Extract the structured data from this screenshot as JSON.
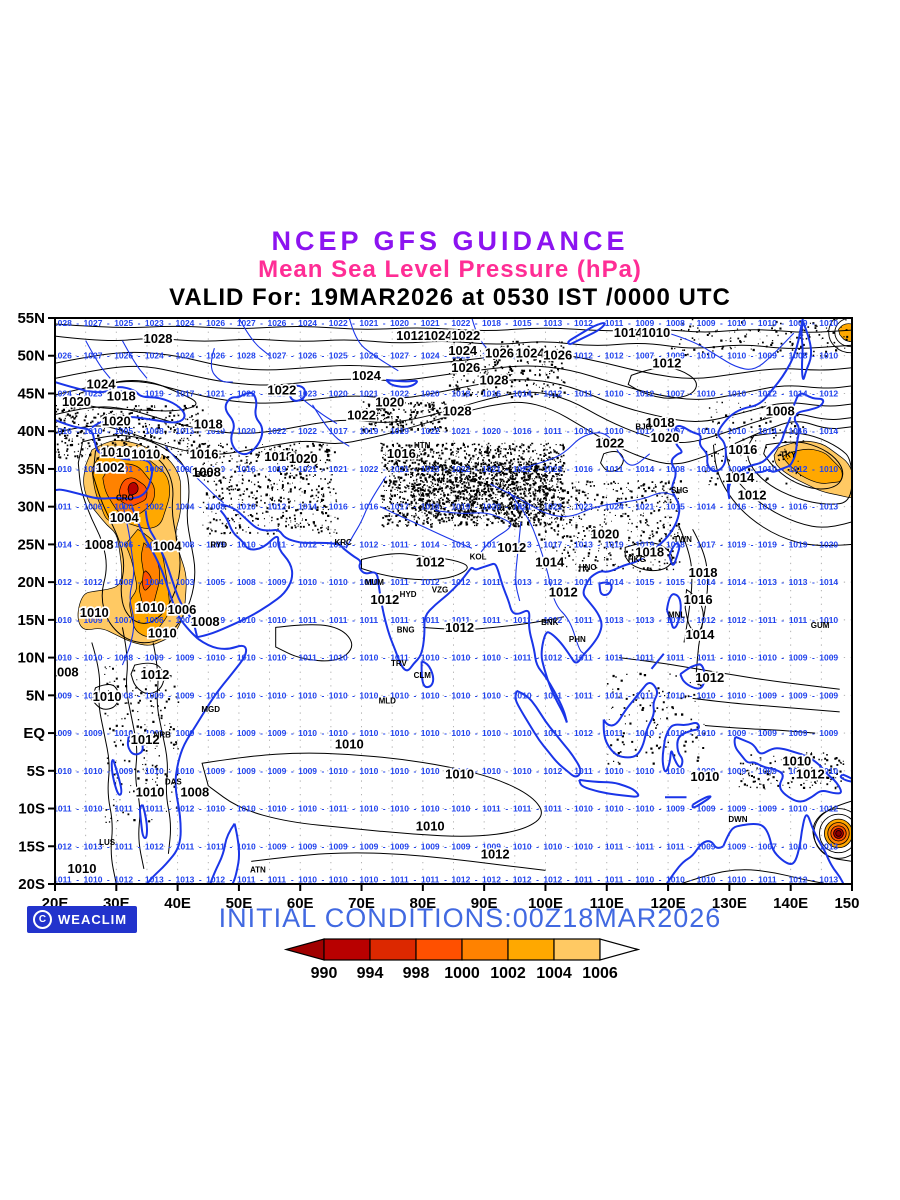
{
  "header": {
    "line1": "NCEP GFS GUIDANCE",
    "line2": "Mean Sea Level Pressure (hPa)",
    "line3": "VALID For: 19MAR2026 at 0530 IST /0000 UTC"
  },
  "footer": {
    "copyright_symbol": "C",
    "credit": "WEACLIM",
    "initial_conditions": "INITIAL CONDITIONS:00Z18MAR2026"
  },
  "colors": {
    "title": "#8C13F0",
    "subtitle": "#FF2D95",
    "valid_line": "#000000",
    "initial_conditions": "#4169E1",
    "badge_bg": "#2233CC",
    "coastline": "#1A35E8",
    "value_grid": "#2244EE",
    "contour": "#000000",
    "grid_dots": "#AAAAAA"
  },
  "legend": {
    "levels": [
      "990",
      "994",
      "998",
      "1000",
      "1002",
      "1004",
      "1006"
    ],
    "box_colors": [
      "#B80000",
      "#DC2800",
      "#FF5000",
      "#FF8200",
      "#FFA800",
      "#FFC963"
    ],
    "arrow_left_color": "#A00000",
    "arrow_right_color": "#FFFFFF"
  },
  "map": {
    "extent": {
      "lon_min": 20,
      "lon_max": 150,
      "lat_min": -20,
      "lat_max": 55
    },
    "lon_labels": [
      "20E",
      "30E",
      "40E",
      "50E",
      "60E",
      "70E",
      "80E",
      "90E",
      "100E",
      "110E",
      "120E",
      "130E",
      "140E",
      "150E"
    ],
    "lat_labels": [
      "55N",
      "50N",
      "45N",
      "40N",
      "35N",
      "30N",
      "25N",
      "20N",
      "15N",
      "10N",
      "5N",
      "EQ",
      "5S",
      "10S",
      "15S",
      "20S"
    ],
    "value_grid": {
      "start_lon": 21.2,
      "step": 5,
      "rows": [
        {
          "lat": 54.6,
          "values": [
            1028,
            1027,
            1025,
            1023,
            1024,
            1026,
            1027,
            1026,
            1024,
            1022,
            1021,
            1020,
            1021,
            1022,
            1018,
            1015,
            1013,
            1012,
            1011,
            1009,
            1008,
            1009,
            1010,
            1010,
            1009,
            1010
          ]
        },
        {
          "lat": 50,
          "values": [
            1026,
            1027,
            1026,
            1024,
            1024,
            1026,
            1028,
            1027,
            1026,
            1025,
            1026,
            1027,
            1024,
            1023,
            1021,
            1020,
            1015,
            1012,
            1012,
            1007,
            1009,
            1010,
            1010,
            1009,
            1008,
            1010
          ]
        },
        {
          "lat": 45,
          "values": [
            1024,
            1023,
            1021,
            1019,
            1017,
            1021,
            1022,
            1023,
            1023,
            1020,
            1021,
            1022,
            1020,
            1018,
            1016,
            1014,
            1012,
            1011,
            1010,
            1012,
            1007,
            1010,
            1010,
            1012,
            1014,
            1012
          ]
        },
        {
          "lat": 40,
          "values": [
            1016,
            1010,
            1005,
            1008,
            1013,
            1019,
            1020,
            1022,
            1022,
            1017,
            1019,
            1019,
            1022,
            1021,
            1020,
            1016,
            1011,
            1010,
            1010,
            1012,
            1007,
            1010,
            1010,
            1014,
            1016,
            1014
          ]
        },
        {
          "lat": 35,
          "values": [
            1010,
            1006,
            1001,
            1003,
            1006,
            1010,
            1016,
            1019,
            1021,
            1021,
            1022,
            1021,
            1023,
            1022,
            1021,
            1022,
            1023,
            1016,
            1011,
            1014,
            1008,
            1006,
            1008,
            1010,
            1012,
            1010
          ]
        },
        {
          "lat": 30,
          "values": [
            1011,
            1006,
            1000,
            1002,
            1004,
            1008,
            1010,
            1012,
            1014,
            1016,
            1016,
            1017,
            1018,
            1019,
            1020,
            1021,
            1022,
            1023,
            1024,
            1021,
            1015,
            1014,
            1016,
            1019,
            1016,
            1013
          ]
        },
        {
          "lat": 25,
          "values": [
            1014,
            1010,
            1006,
            1007,
            1008,
            1009,
            1010,
            1011,
            1012,
            1013,
            1012,
            1011,
            1014,
            1013,
            1013,
            1013,
            1017,
            1013,
            1019,
            1019,
            1018,
            1017,
            1019,
            1019,
            1019,
            1020
          ]
        },
        {
          "lat": 20,
          "values": [
            1012,
            1012,
            1008,
            1004,
            1003,
            1005,
            1008,
            1009,
            1010,
            1010,
            1010,
            1011,
            1012,
            1012,
            1011,
            1013,
            1012,
            1011,
            1014,
            1015,
            1015,
            1014,
            1014,
            1013,
            1013,
            1014
          ]
        },
        {
          "lat": 15,
          "values": [
            1010,
            1009,
            1007,
            1006,
            1008,
            1009,
            1010,
            1010,
            1011,
            1011,
            1011,
            1011,
            1011,
            1011,
            1011,
            1011,
            1012,
            1011,
            1013,
            1013,
            1013,
            1012,
            1012,
            1011,
            1011,
            1010
          ]
        },
        {
          "lat": 10,
          "values": [
            1010,
            1010,
            1008,
            1009,
            1009,
            1010,
            1010,
            1010,
            1011,
            1010,
            1010,
            1011,
            1010,
            1010,
            1010,
            1011,
            1012,
            1011,
            1011,
            1011,
            1011,
            1011,
            1010,
            1010,
            1009,
            1009
          ]
        },
        {
          "lat": 5,
          "values": [
            1009,
            1008,
            1008,
            1009,
            1009,
            1010,
            1010,
            1010,
            1010,
            1010,
            1010,
            1010,
            1010,
            1010,
            1010,
            1010,
            1011,
            1011,
            1011,
            1011,
            1010,
            1010,
            1010,
            1009,
            1009,
            1009
          ]
        },
        {
          "lat": 0,
          "values": [
            1009,
            1009,
            1010,
            1011,
            1009,
            1008,
            1009,
            1009,
            1010,
            1010,
            1010,
            1010,
            1010,
            1010,
            1010,
            1010,
            1011,
            1012,
            1011,
            1010,
            1010,
            1010,
            1009,
            1009,
            1009,
            1009
          ]
        },
        {
          "lat": -5,
          "values": [
            1010,
            1010,
            1009,
            1010,
            1010,
            1009,
            1009,
            1009,
            1009,
            1010,
            1010,
            1010,
            1010,
            1010,
            1010,
            1010,
            1012,
            1011,
            1010,
            1010,
            1010,
            1009,
            1009,
            1009,
            1009,
            1010
          ]
        },
        {
          "lat": -10,
          "values": [
            1011,
            1010,
            1011,
            1011,
            1012,
            1010,
            1010,
            1010,
            1010,
            1011,
            1010,
            1010,
            1010,
            1010,
            1011,
            1011,
            1011,
            1010,
            1010,
            1010,
            1009,
            1009,
            1009,
            1009,
            1010,
            1012
          ]
        },
        {
          "lat": -15,
          "values": [
            1012,
            1013,
            1011,
            1012,
            1011,
            1011,
            1010,
            1009,
            1009,
            1009,
            1009,
            1009,
            1009,
            1009,
            1009,
            1010,
            1010,
            1010,
            1011,
            1011,
            1011,
            1009,
            1009,
            1007,
            1010,
            1013
          ]
        },
        {
          "lat": -19.4,
          "values": [
            1011,
            1010,
            1012,
            1013,
            1013,
            1012,
            1011,
            1011,
            1010,
            1010,
            1010,
            1011,
            1011,
            1012,
            1012,
            1012,
            1012,
            1011,
            1011,
            1010,
            1010,
            1010,
            1010,
            1011,
            1012,
            1013
          ]
        }
      ]
    },
    "contour_labels": [
      [
        36.8,
        52.2,
        "1028"
      ],
      [
        78,
        52.6,
        "1012"
      ],
      [
        82.5,
        52.6,
        "1024"
      ],
      [
        87,
        52.6,
        "1022"
      ],
      [
        113.5,
        53,
        "1014"
      ],
      [
        118,
        53,
        "1010"
      ],
      [
        86.5,
        50.6,
        "1024"
      ],
      [
        92.5,
        50.3,
        "1026"
      ],
      [
        97.5,
        50.3,
        "1024"
      ],
      [
        102,
        50,
        "1026"
      ],
      [
        87,
        48.4,
        "1026"
      ],
      [
        91.6,
        46.7,
        "1028"
      ],
      [
        70.8,
        47.3,
        "1024"
      ],
      [
        57,
        45.4,
        "1022"
      ],
      [
        74.6,
        43.8,
        "1020"
      ],
      [
        70,
        42.1,
        "1022"
      ],
      [
        85.6,
        42.6,
        "1028"
      ],
      [
        27.5,
        46.2,
        "1024"
      ],
      [
        23.5,
        43.9,
        "1020"
      ],
      [
        30.8,
        44.6,
        "1018"
      ],
      [
        30,
        41.3,
        "1020"
      ],
      [
        45,
        40.9,
        "1018"
      ],
      [
        119.8,
        49,
        "1012"
      ],
      [
        138.3,
        42.6,
        "1008"
      ],
      [
        118.7,
        41.1,
        "1018"
      ],
      [
        119.5,
        39.1,
        "1020"
      ],
      [
        110.5,
        38.4,
        "1022"
      ],
      [
        132.2,
        37.5,
        "1016"
      ],
      [
        131.7,
        33.8,
        "1014"
      ],
      [
        133.7,
        31.5,
        "1012"
      ],
      [
        56.5,
        36.6,
        "1018"
      ],
      [
        60.5,
        36.3,
        "1020"
      ],
      [
        76.5,
        37,
        "1016"
      ],
      [
        29.8,
        37.2,
        "1000"
      ],
      [
        32.3,
        37.1,
        "1010"
      ],
      [
        34.8,
        36.9,
        "1010"
      ],
      [
        44.3,
        36.9,
        "1016"
      ],
      [
        29,
        35.1,
        "1002"
      ],
      [
        44.7,
        34.5,
        "1008"
      ],
      [
        31.3,
        28.5,
        "1004"
      ],
      [
        27.2,
        24.9,
        "1008"
      ],
      [
        38.3,
        24.7,
        "1004"
      ],
      [
        26.4,
        15.9,
        "1010"
      ],
      [
        35.5,
        16.6,
        "1010"
      ],
      [
        40.7,
        16.3,
        "1006"
      ],
      [
        37.5,
        13.2,
        "1010"
      ],
      [
        44.5,
        14.7,
        "1008"
      ],
      [
        21.5,
        8,
        "1008"
      ],
      [
        28.5,
        4.8,
        "1010"
      ],
      [
        36.3,
        7.7,
        "1012"
      ],
      [
        34.7,
        -0.9,
        "1012"
      ],
      [
        35.5,
        -7.9,
        "1010"
      ],
      [
        42.8,
        -7.9,
        "1008"
      ],
      [
        24.4,
        -18,
        "1010"
      ],
      [
        81.2,
        22.6,
        "1012"
      ],
      [
        94.5,
        24.5,
        "1012"
      ],
      [
        100.7,
        22.6,
        "1014"
      ],
      [
        102.9,
        18.6,
        "1012"
      ],
      [
        73.8,
        17.6,
        "1012"
      ],
      [
        86,
        13.9,
        "1012"
      ],
      [
        125.7,
        21.2,
        "1018"
      ],
      [
        124.9,
        17.6,
        "1016"
      ],
      [
        125.2,
        13,
        "1014"
      ],
      [
        126.8,
        7.3,
        "1012"
      ],
      [
        117,
        23.9,
        "1018"
      ],
      [
        109.7,
        26.3,
        "1020"
      ],
      [
        68,
        -1.5,
        "1010"
      ],
      [
        86,
        -5.5,
        "1010"
      ],
      [
        81.2,
        -12.4,
        "1010"
      ],
      [
        91.8,
        -16.1,
        "1012"
      ],
      [
        141,
        -3.8,
        "1010"
      ],
      [
        143.2,
        -5.5,
        "1012"
      ],
      [
        126,
        -5.8,
        "1010"
      ]
    ],
    "stations": [
      [
        31.4,
        30.8,
        "CRO"
      ],
      [
        44.3,
        33.9,
        "BGD"
      ],
      [
        46.7,
        24.6,
        "RYD"
      ],
      [
        67,
        24.9,
        "KRC"
      ],
      [
        72.1,
        19.6,
        "MUM"
      ],
      [
        77.6,
        18,
        "HYD"
      ],
      [
        82.8,
        18.6,
        "VZG"
      ],
      [
        77.2,
        13.3,
        "BNG"
      ],
      [
        76.1,
        8.9,
        "TRV"
      ],
      [
        79.9,
        7.3,
        "CLM"
      ],
      [
        74.2,
        3.9,
        "MLD"
      ],
      [
        89,
        23,
        "KOL"
      ],
      [
        100.7,
        14.3,
        "BNK"
      ],
      [
        105.2,
        12.1,
        "PHN"
      ],
      [
        106.9,
        21.6,
        "HNO"
      ],
      [
        114.9,
        22.7,
        "HKG"
      ],
      [
        122.4,
        25.3,
        "TWN"
      ],
      [
        121.9,
        31.8,
        "SHG"
      ],
      [
        139.6,
        36.5,
        "TKY"
      ],
      [
        116,
        40.2,
        "BJG"
      ],
      [
        79.9,
        37.8,
        "HTN"
      ],
      [
        121.4,
        15.3,
        "MNL"
      ],
      [
        144.8,
        13.9,
        "GUM"
      ],
      [
        131.4,
        -11.8,
        "DWN"
      ],
      [
        45.4,
        2.8,
        "MGD"
      ],
      [
        37.5,
        -0.6,
        "NRB"
      ],
      [
        39.3,
        -6.8,
        "DAS"
      ],
      [
        28.5,
        -14.8,
        "LUS"
      ],
      [
        53.1,
        -18.5,
        "ATN"
      ]
    ]
  }
}
